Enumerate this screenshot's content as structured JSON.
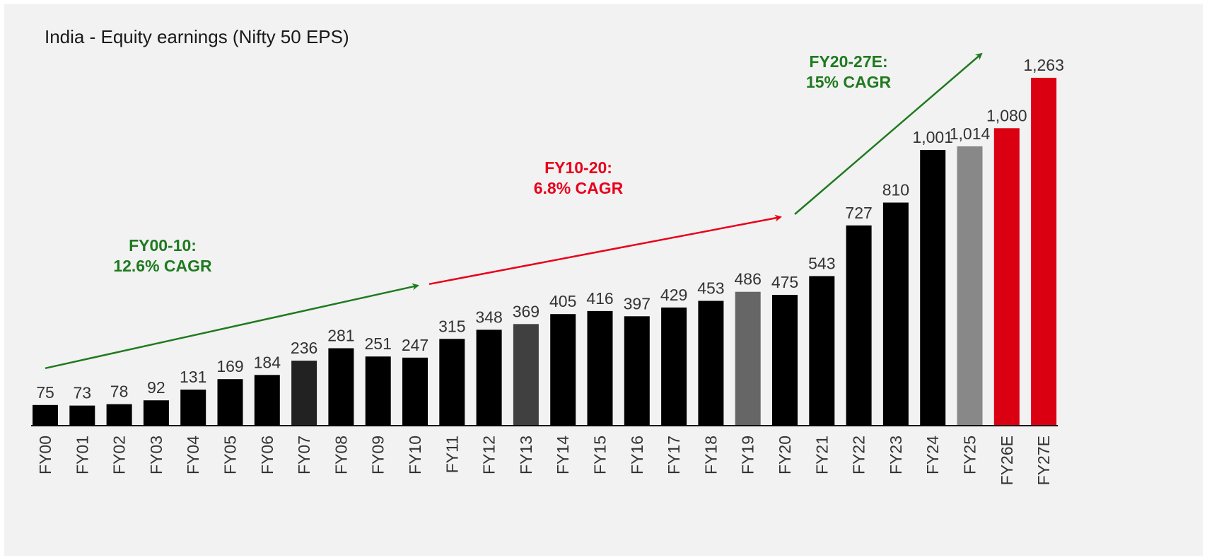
{
  "chart_data": {
    "type": "bar",
    "title": "India - Equity earnings (Nifty 50 EPS)",
    "xlabel": "",
    "ylabel": "",
    "ylim": [
      0,
      1300
    ],
    "grid": false,
    "legend": "none",
    "categories": [
      "FY00",
      "FY01",
      "FY02",
      "FY03",
      "FY04",
      "FY05",
      "FY06",
      "FY07",
      "FY08",
      "FY09",
      "FY10",
      "FY11",
      "FY12",
      "FY13",
      "FY14",
      "FY15",
      "FY16",
      "FY17",
      "FY18",
      "FY19",
      "FY20",
      "FY21",
      "FY22",
      "FY23",
      "FY24",
      "FY25",
      "FY26E",
      "FY27E"
    ],
    "values": [
      75,
      73,
      78,
      92,
      131,
      169,
      184,
      236,
      281,
      251,
      247,
      315,
      348,
      369,
      405,
      416,
      397,
      429,
      453,
      486,
      475,
      543,
      727,
      810,
      1001,
      1014,
      1080,
      1263
    ],
    "value_labels": [
      "75",
      "73",
      "78",
      "92",
      "131",
      "169",
      "184",
      "236",
      "281",
      "251",
      "247",
      "315",
      "348",
      "369",
      "405",
      "416",
      "397",
      "429",
      "453",
      "486",
      "475",
      "543",
      "727",
      "810",
      "1,001",
      "1,014",
      "1,080",
      "1,263"
    ],
    "bar_colors": [
      "#000000",
      "#000000",
      "#000000",
      "#000000",
      "#000000",
      "#000000",
      "#000000",
      "#222222",
      "#000000",
      "#000000",
      "#000000",
      "#000000",
      "#000000",
      "#404040",
      "#000000",
      "#000000",
      "#000000",
      "#000000",
      "#000000",
      "#666666",
      "#000000",
      "#000000",
      "#000000",
      "#000000",
      "#000000",
      "#888888",
      "#db0011",
      "#db0011"
    ],
    "annotations": [
      {
        "lines": [
          "FY00-10:",
          "12.6% CAGR"
        ],
        "color": "#1f7a1f",
        "from_index": 0,
        "to_index": 10
      },
      {
        "lines": [
          "FY10-20:",
          "6.8% CAGR"
        ],
        "color": "#e8001c",
        "from_index": 10,
        "to_index": 20
      },
      {
        "lines": [
          "FY20-27E:",
          "15% CAGR"
        ],
        "color": "#1f7a1f",
        "from_index": 20,
        "to_index": 27
      }
    ]
  }
}
